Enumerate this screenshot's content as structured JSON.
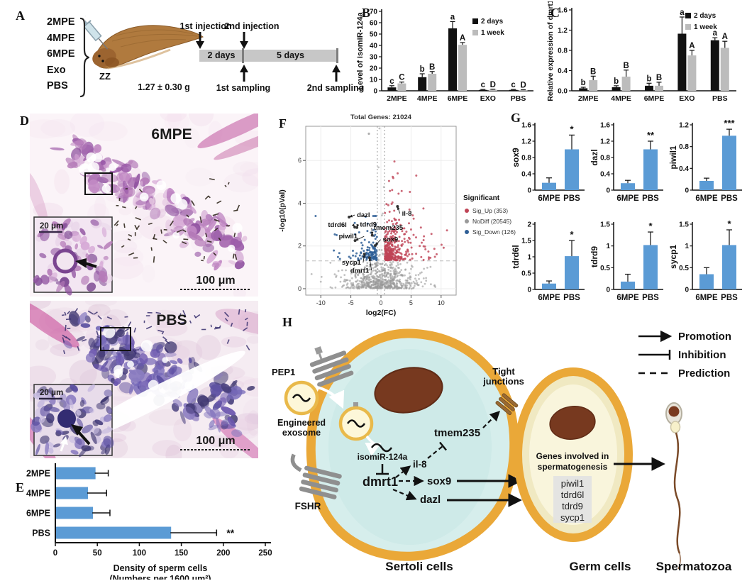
{
  "colors": {
    "bar_black": "#111111",
    "bar_gray": "#bcbcbc",
    "bar_blue": "#5b9bd5",
    "sig_up": "#bf4456",
    "sig_down": "#2f5f96",
    "no_diff": "#9a9a9a",
    "membrane_orange": "#eaa838",
    "sertoli_fill": "#d6eeec",
    "germ_fill": "#f0e9c2",
    "nucleus_brown": "#77391f"
  },
  "panel_a": {
    "label": "A",
    "groups": [
      "2MPE",
      "4MPE",
      "6MPE",
      "Exo",
      "PBS"
    ],
    "fish_tag": "ZZ",
    "weight": "1.27 ± 0.30 g",
    "injection1": "1st injection",
    "injection2": "2nd injection",
    "sampling1": "1st sampling",
    "sampling2": "2nd sampling",
    "seg1": "2 days",
    "seg2": "5 days"
  },
  "panel_b": {
    "label": "B"
  },
  "panel_c": {
    "label": "C"
  },
  "panel_d": {
    "label": "D",
    "img1_title": "6MPE",
    "img1_inset_scale": "20 μm",
    "img1_scale": "100 μm",
    "img2_title": "PBS",
    "img2_inset_scale": "20 μm",
    "img2_scale": "100 μm"
  },
  "panel_e": {
    "label": "E"
  },
  "panel_f": {
    "label": "F"
  },
  "panel_g": {
    "label": "G"
  },
  "panel_h": {
    "label": "H",
    "legend": [
      {
        "type": "promotion",
        "label": "Promotion"
      },
      {
        "type": "inhibition",
        "label": "Inhibition"
      },
      {
        "type": "prediction",
        "label": "Prediction"
      }
    ],
    "pep1": "PEP1",
    "engineered_exosome_1": "Engineered",
    "engineered_exosome_2": "exosome",
    "fshr": "FSHR",
    "isomir": "isomiR-124a",
    "dmrt1": "dmrt1",
    "il8": "il-8",
    "tmem235": "tmem235",
    "sox9": "sox9",
    "dazl": "dazl",
    "tight_junctions_1": "Tight",
    "tight_junctions_2": "junctions",
    "genes_involved_1": "Genes involved in",
    "genes_involved_2": "spermatogenesis",
    "gene_list": [
      "piwil1",
      "tdrd6l",
      "tdrd9",
      "sycp1"
    ],
    "sertoli_label": "Sertoli cells",
    "germ_label": "Germ cells",
    "sperm_label": "Spermatozoa"
  },
  "chart_data": {
    "panel_b": {
      "type": "bar",
      "ylabel": "Level of isomiR-124a",
      "categories": [
        "2MPE",
        "4MPE",
        "6MPE",
        "EXO",
        "PBS"
      ],
      "ylim": [
        0,
        70
      ],
      "yticks": [
        0,
        10,
        20,
        30,
        40,
        50,
        60,
        70
      ],
      "ytick_labels": [
        "0",
        "10",
        "20",
        "30",
        "40",
        "50",
        "60",
        "70"
      ],
      "series": [
        {
          "name": "2 days",
          "color_key": "bar_black",
          "values": [
            3,
            12,
            55,
            0.8,
            0.8
          ],
          "errors": [
            1.5,
            3,
            6,
            0.4,
            0.4
          ],
          "letters": [
            "c",
            "b",
            "a",
            "c",
            "c"
          ]
        },
        {
          "name": "1 week",
          "color_key": "bar_gray",
          "values": [
            6.5,
            15,
            40.5,
            1.0,
            0.6
          ],
          "errors": [
            1.2,
            2,
            2,
            0.4,
            0.3
          ],
          "letters": [
            "C",
            "B",
            "A",
            "D",
            "D"
          ]
        }
      ]
    },
    "panel_c": {
      "type": "bar",
      "ylabel": "Relative expression of dmrt1",
      "categories": [
        "2MPE",
        "4MPE",
        "6MPE",
        "EXO",
        "PBS"
      ],
      "ylim": [
        0,
        1.6
      ],
      "yticks": [
        0,
        0.4,
        0.8,
        1.2,
        1.6
      ],
      "ytick_labels": [
        "0.0",
        "0.4",
        "0.8",
        "1.2",
        "1.6"
      ],
      "series": [
        {
          "name": "2 days",
          "color_key": "bar_black",
          "values": [
            0.05,
            0.07,
            0.1,
            1.13,
            1.0
          ],
          "errors": [
            0.02,
            0.03,
            0.05,
            0.33,
            0.05
          ],
          "letters": [
            "b",
            "b",
            "b",
            "a",
            "a"
          ]
        },
        {
          "name": "1 week",
          "color_key": "bar_gray",
          "values": [
            0.21,
            0.28,
            0.1,
            0.7,
            0.85
          ],
          "errors": [
            0.08,
            0.13,
            0.07,
            0.1,
            0.13
          ],
          "letters": [
            "B",
            "B",
            "B",
            "A",
            "A"
          ]
        }
      ]
    },
    "panel_e": {
      "type": "hbar",
      "categories": [
        "2MPE",
        "4MPE",
        "6MPE",
        "PBS"
      ],
      "values": [
        47,
        38,
        44,
        137
      ],
      "errors": [
        16,
        23,
        21,
        55
      ],
      "sig": [
        "",
        "",
        "",
        "**"
      ],
      "xlim": [
        0,
        250
      ],
      "xticks": [
        0,
        50,
        100,
        150,
        200,
        250
      ],
      "xtick_labels": [
        "0",
        "50",
        "100",
        "150",
        "200",
        "250"
      ],
      "xlabel_line1": "Density of sperm cells",
      "xlabel_line2": "(Numbers per 1600 μm²)"
    },
    "panel_f": {
      "type": "scatter",
      "title": "Total Genes: 21024",
      "xlabel": "log2(FC)",
      "ylabel": "-log10(pVal)",
      "xlim": [
        -12.5,
        12.5
      ],
      "ylim": [
        -0.3,
        7.6
      ],
      "xticks": [
        -10,
        -5,
        0,
        5,
        10
      ],
      "xtick_labels": [
        "-10",
        "-5",
        "0",
        "5",
        "10"
      ],
      "yticks": [
        0,
        2,
        4,
        6
      ],
      "ytick_labels": [
        "0",
        "2",
        "4",
        "6"
      ],
      "fc_threshold": 0.6,
      "p_threshold": 1.3,
      "legend_title": "Significant",
      "legend": [
        {
          "name": "Sig_Up (353)",
          "color_key": "sig_up"
        },
        {
          "name": "NoDiff (20545)",
          "color_key": "no_diff"
        },
        {
          "name": "Sig_Down (126)",
          "color_key": "sig_down"
        }
      ],
      "counts": {
        "up": 353,
        "down": 126,
        "nodiff": 620,
        "spire": 12
      },
      "seed": 42,
      "outlier": {
        "x": -2.0,
        "y": 7.25
      },
      "genes": [
        {
          "name": "dazl",
          "x": -5.3,
          "y": 3.35,
          "lx": -4.0,
          "ly": 3.35
        },
        {
          "name": "tdrd6l",
          "x": -4.35,
          "y": 2.88,
          "lx": -8.8,
          "ly": 2.88
        },
        {
          "name": "tdrd9",
          "x": -4.0,
          "y": 2.86,
          "lx": -3.5,
          "ly": 2.9
        },
        {
          "name": "piwil1",
          "x": -4.3,
          "y": 2.25,
          "lx": -7.0,
          "ly": 2.35
        },
        {
          "name": "tmem235",
          "x": -1.45,
          "y": 2.5,
          "lx": -1.2,
          "ly": 2.75
        },
        {
          "name": "sox9",
          "x": -0.95,
          "y": 2.02,
          "lx": 0.3,
          "ly": 2.2
        },
        {
          "name": "sycp1",
          "x": -2.75,
          "y": 1.62,
          "lx": -6.5,
          "ly": 1.12
        },
        {
          "name": "dmrt1",
          "x": -1.9,
          "y": 1.45,
          "lx": -5.1,
          "ly": 0.75
        },
        {
          "name": "il-8",
          "x": 2.75,
          "y": 3.85,
          "lx": 3.5,
          "ly": 3.42
        }
      ]
    },
    "panel_g": {
      "type": "bar-grid",
      "categories": [
        "6MPE",
        "PBS"
      ],
      "charts": [
        {
          "gene": "sox9",
          "ylim": [
            0,
            1.6
          ],
          "yticks": [
            0,
            0.4,
            0.8,
            1.2,
            1.6
          ],
          "ytick_labels": [
            "0",
            "0.4",
            "0.8",
            "1.2",
            "1.6"
          ],
          "values": [
            0.18,
            1.0
          ],
          "errors": [
            0.12,
            0.35
          ],
          "sig": "*"
        },
        {
          "gene": "dazl",
          "ylim": [
            0,
            1.6
          ],
          "yticks": [
            0,
            0.4,
            0.8,
            1.2,
            1.6
          ],
          "ytick_labels": [
            "0",
            "0.4",
            "0.8",
            "1.2",
            "1.6"
          ],
          "values": [
            0.17,
            1.0
          ],
          "errors": [
            0.07,
            0.2
          ],
          "sig": "**"
        },
        {
          "gene": "piwil1",
          "ylim": [
            0,
            1.2
          ],
          "yticks": [
            0,
            0.4,
            0.8,
            1.2
          ],
          "ytick_labels": [
            "0",
            "0.4",
            "0.8",
            "1.2"
          ],
          "values": [
            0.17,
            1.0
          ],
          "errors": [
            0.05,
            0.12
          ],
          "sig": "***"
        },
        {
          "gene": "tdrd6l",
          "ylim": [
            0,
            2
          ],
          "yticks": [
            0,
            0.5,
            1,
            1.5,
            2
          ],
          "ytick_labels": [
            "0",
            "0.5",
            "1",
            "1.5",
            "2"
          ],
          "values": [
            0.18,
            1.02
          ],
          "errors": [
            0.08,
            0.48
          ],
          "sig": "*"
        },
        {
          "gene": "tdrd9",
          "ylim": [
            0,
            1.5
          ],
          "yticks": [
            0,
            0.5,
            1,
            1.5
          ],
          "ytick_labels": [
            "0",
            "0.5",
            "1",
            "1.5"
          ],
          "values": [
            0.18,
            1.02
          ],
          "errors": [
            0.17,
            0.3
          ],
          "sig": "*"
        },
        {
          "gene": "sycp1",
          "ylim": [
            0,
            1.5
          ],
          "yticks": [
            0,
            0.5,
            1,
            1.5
          ],
          "ytick_labels": [
            "0",
            "0.5",
            "1",
            "1.5"
          ],
          "values": [
            0.35,
            1.02
          ],
          "errors": [
            0.15,
            0.35
          ],
          "sig": "*"
        }
      ]
    }
  }
}
